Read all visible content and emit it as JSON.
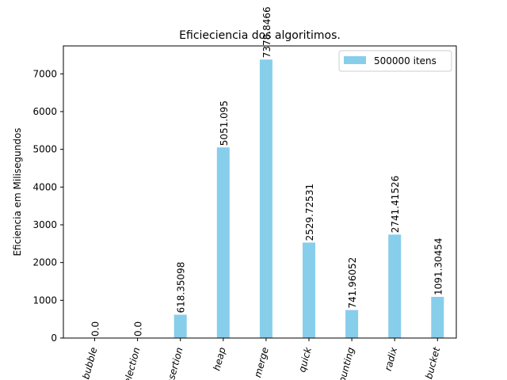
{
  "chart_data": {
    "type": "bar",
    "title": "Eficieciencia dos algoritimos.",
    "xlabel": "",
    "ylabel": "Eficiencia em Milisegundos",
    "ylim": [
      0,
      7740
    ],
    "yticks": [
      0,
      1000,
      2000,
      3000,
      4000,
      5000,
      6000,
      7000
    ],
    "categories": [
      "bubble",
      "selection",
      "insertion",
      "heap",
      "merge",
      "quick",
      "counting",
      "radix",
      "bucket"
    ],
    "series": [
      {
        "name": "500000 itens",
        "color": "#87ceeb",
        "values": [
          0.0,
          0.0,
          618.35098,
          5051.095,
          7378.8466,
          2529.72531,
          741.96052,
          2741.41526,
          1091.30454
        ],
        "labels": [
          "0.0",
          "0.0",
          "618.35098",
          "5051.095",
          "7378.8466",
          "2529.72531",
          "741.96052",
          "2741.41526",
          "1091.30454"
        ]
      }
    ],
    "legend_position": "top-right",
    "grid": false
  }
}
